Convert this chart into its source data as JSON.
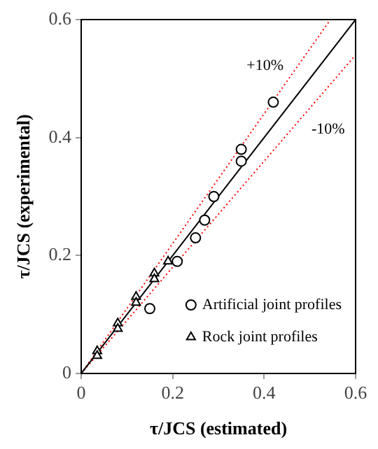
{
  "chart_data": {
    "type": "scatter",
    "xlabel": "τ/JCS (estimated)",
    "ylabel": "τ/JCS (experimental)",
    "xlim": [
      0,
      0.6
    ],
    "ylim": [
      0,
      0.6
    ],
    "xticks": [
      0,
      0.2,
      0.4,
      0.6
    ],
    "yticks": [
      0,
      0.2,
      0.4,
      0.6
    ],
    "grid": false,
    "legend": "bottom right",
    "series": [
      {
        "name": "Artificial joint profiles",
        "color": "#000000",
        "marker": "circle",
        "x": [
          0.42,
          0.35,
          0.35,
          0.29,
          0.27,
          0.25,
          0.21,
          0.15
        ],
        "values": [
          0.46,
          0.38,
          0.36,
          0.3,
          0.26,
          0.23,
          0.19,
          0.11
        ]
      },
      {
        "name": "Rock joint profiles",
        "color": "#000000",
        "marker": "triangle",
        "x": [
          0.19,
          0.16,
          0.16,
          0.12,
          0.12,
          0.08,
          0.08,
          0.035,
          0.035
        ],
        "values": [
          0.19,
          0.17,
          0.16,
          0.13,
          0.12,
          0.085,
          0.076,
          0.038,
          0.03
        ]
      },
      {
        "type": "line",
        "color": "#000000",
        "line_style": "solid",
        "marker": "none",
        "x": [
          0,
          0.6
        ],
        "values": [
          0,
          0.6
        ]
      },
      {
        "type": "line",
        "color": "#ff0000",
        "line_style": "dotted",
        "marker": "none",
        "x": [
          0,
          0.545
        ],
        "values": [
          0,
          0.6
        ]
      },
      {
        "type": "line",
        "color": "#ff0000",
        "line_style": "dotted",
        "marker": "none",
        "x": [
          0,
          0.6
        ],
        "values": [
          0,
          0.54
        ]
      }
    ],
    "annotations": [
      "+10%",
      "-10%"
    ]
  }
}
